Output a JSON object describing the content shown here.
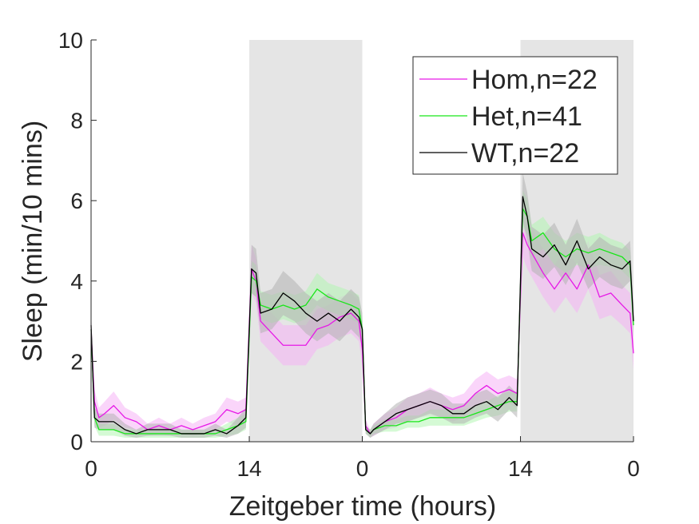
{
  "chart_data": {
    "type": "line",
    "xlabel": "Zeitgeber time (hours)",
    "ylabel": "Sleep (min/10 mins)",
    "ylim": [
      0,
      10
    ],
    "yticks": [
      "0",
      "2",
      "4",
      "6",
      "8",
      "10"
    ],
    "x_unit": "hours (2 consecutive 24 h days)",
    "xlim": [
      0,
      48
    ],
    "xticks": [
      {
        "x": 0,
        "label": "0"
      },
      {
        "x": 14,
        "label": "14"
      },
      {
        "x": 24,
        "label": "0"
      },
      {
        "x": 38,
        "label": "14"
      },
      {
        "x": 48,
        "label": "0"
      }
    ],
    "dark_periods": [
      [
        14,
        24
      ],
      [
        38,
        48
      ]
    ],
    "shaded_color": "#e5e5e5",
    "grid": false,
    "legend_position": "top-right",
    "series": [
      {
        "name": "Hom,n=22",
        "color": "#e619e6",
        "band_color": "#f5b3f5",
        "x": [
          0,
          0.3,
          0.7,
          1.2,
          2,
          3,
          4,
          5,
          6,
          7,
          8,
          9,
          10,
          11,
          12,
          13,
          13.7,
          14.2,
          14.6,
          15,
          16,
          17,
          18,
          19,
          20,
          21,
          22,
          23,
          23.7,
          24,
          24.3,
          24.7,
          25,
          26,
          27,
          28,
          29,
          30,
          31,
          32,
          33,
          34,
          35,
          36,
          37,
          37.7,
          38.2,
          38.6,
          39,
          40,
          41,
          42,
          43,
          44,
          45,
          46,
          47,
          47.7,
          48
        ],
        "y": [
          2.8,
          1.0,
          0.6,
          0.7,
          0.9,
          0.6,
          0.5,
          0.3,
          0.4,
          0.3,
          0.4,
          0.3,
          0.4,
          0.5,
          0.8,
          0.7,
          0.8,
          4.3,
          4.0,
          3.0,
          2.7,
          2.4,
          2.4,
          2.4,
          2.8,
          2.9,
          3.1,
          3.2,
          3.0,
          2.3,
          0.4,
          0.2,
          0.3,
          0.5,
          0.6,
          0.8,
          0.9,
          1.0,
          0.9,
          0.8,
          0.9,
          1.2,
          1.4,
          1.2,
          1.3,
          1.2,
          5.2,
          4.9,
          4.7,
          4.2,
          3.8,
          4.2,
          3.8,
          4.4,
          3.6,
          3.7,
          3.4,
          3.2,
          2.2
        ],
        "err": [
          0.4,
          0.3,
          0.25,
          0.3,
          0.35,
          0.25,
          0.2,
          0.15,
          0.2,
          0.15,
          0.2,
          0.15,
          0.2,
          0.2,
          0.3,
          0.3,
          0.3,
          0.6,
          0.55,
          0.5,
          0.5,
          0.5,
          0.5,
          0.5,
          0.5,
          0.5,
          0.5,
          0.5,
          0.5,
          0.4,
          0.15,
          0.1,
          0.15,
          0.2,
          0.25,
          0.3,
          0.3,
          0.35,
          0.3,
          0.3,
          0.3,
          0.35,
          0.35,
          0.35,
          0.35,
          0.35,
          0.6,
          0.6,
          0.6,
          0.6,
          0.6,
          0.6,
          0.6,
          0.6,
          0.55,
          0.55,
          0.5,
          0.5,
          0.4
        ]
      },
      {
        "name": "Het,n=41",
        "color": "#19e619",
        "band_color": "#b3f5b3",
        "x": [
          0,
          0.3,
          0.7,
          1.2,
          2,
          3,
          4,
          5,
          6,
          7,
          8,
          9,
          10,
          11,
          12,
          13,
          13.7,
          14.2,
          14.6,
          15,
          16,
          17,
          18,
          19,
          20,
          21,
          22,
          23,
          23.7,
          24,
          24.3,
          24.7,
          25,
          26,
          27,
          28,
          29,
          30,
          31,
          32,
          33,
          34,
          35,
          36,
          37,
          37.7,
          38.2,
          38.6,
          39,
          40,
          41,
          42,
          43,
          44,
          45,
          46,
          47,
          47.7,
          48
        ],
        "y": [
          2.8,
          0.6,
          0.3,
          0.3,
          0.3,
          0.2,
          0.2,
          0.2,
          0.2,
          0.2,
          0.2,
          0.2,
          0.2,
          0.2,
          0.3,
          0.4,
          0.5,
          4.1,
          4.0,
          3.4,
          3.3,
          3.4,
          3.3,
          3.4,
          3.8,
          3.6,
          3.5,
          3.4,
          3.3,
          2.8,
          0.3,
          0.2,
          0.3,
          0.4,
          0.4,
          0.5,
          0.5,
          0.6,
          0.6,
          0.6,
          0.6,
          0.7,
          0.8,
          0.9,
          1.0,
          1.0,
          5.8,
          5.6,
          5.0,
          5.2,
          4.8,
          4.6,
          4.8,
          4.7,
          4.8,
          4.7,
          4.6,
          4.4,
          2.9
        ],
        "err": [
          0.3,
          0.2,
          0.15,
          0.15,
          0.15,
          0.1,
          0.1,
          0.1,
          0.1,
          0.1,
          0.1,
          0.1,
          0.1,
          0.1,
          0.15,
          0.2,
          0.2,
          0.4,
          0.4,
          0.35,
          0.35,
          0.35,
          0.35,
          0.35,
          0.4,
          0.35,
          0.35,
          0.35,
          0.35,
          0.3,
          0.1,
          0.1,
          0.1,
          0.15,
          0.15,
          0.15,
          0.15,
          0.2,
          0.2,
          0.2,
          0.2,
          0.2,
          0.2,
          0.25,
          0.25,
          0.25,
          0.45,
          0.45,
          0.4,
          0.4,
          0.4,
          0.4,
          0.4,
          0.4,
          0.4,
          0.35,
          0.35,
          0.35,
          0.3
        ]
      },
      {
        "name": "WT,n=22",
        "color": "#000000",
        "band_color": "#b3b3b3",
        "x": [
          0,
          0.3,
          0.7,
          1.2,
          2,
          3,
          4,
          5,
          6,
          7,
          8,
          9,
          10,
          11,
          12,
          13,
          13.7,
          14.2,
          14.6,
          15,
          16,
          17,
          18,
          19,
          20,
          21,
          22,
          23,
          23.7,
          24,
          24.3,
          24.7,
          25,
          26,
          27,
          28,
          29,
          30,
          31,
          32,
          33,
          34,
          35,
          36,
          37,
          37.7,
          38.2,
          38.6,
          39,
          40,
          41,
          42,
          43,
          44,
          45,
          46,
          47,
          47.7,
          48
        ],
        "y": [
          2.9,
          0.6,
          0.5,
          0.5,
          0.5,
          0.3,
          0.2,
          0.3,
          0.3,
          0.3,
          0.2,
          0.2,
          0.2,
          0.3,
          0.2,
          0.4,
          0.6,
          4.3,
          4.2,
          3.2,
          3.3,
          3.7,
          3.5,
          3.2,
          3.0,
          3.2,
          3.0,
          3.3,
          3.1,
          2.8,
          0.3,
          0.2,
          0.3,
          0.5,
          0.7,
          0.8,
          0.9,
          1.0,
          0.9,
          0.7,
          0.7,
          0.9,
          1.0,
          0.8,
          1.1,
          0.9,
          6.1,
          5.6,
          4.8,
          4.6,
          4.9,
          4.4,
          5.0,
          4.3,
          4.6,
          4.4,
          4.3,
          4.5,
          3.0
        ],
        "err": [
          0.4,
          0.25,
          0.2,
          0.2,
          0.2,
          0.15,
          0.1,
          0.15,
          0.15,
          0.15,
          0.1,
          0.1,
          0.1,
          0.15,
          0.1,
          0.2,
          0.25,
          0.6,
          0.6,
          0.5,
          0.5,
          0.55,
          0.5,
          0.5,
          0.5,
          0.5,
          0.5,
          0.5,
          0.5,
          0.4,
          0.1,
          0.1,
          0.15,
          0.2,
          0.25,
          0.3,
          0.3,
          0.3,
          0.3,
          0.25,
          0.25,
          0.3,
          0.3,
          0.3,
          0.3,
          0.3,
          0.6,
          0.6,
          0.55,
          0.55,
          0.55,
          0.5,
          0.55,
          0.5,
          0.5,
          0.5,
          0.5,
          0.5,
          0.4
        ]
      }
    ]
  }
}
